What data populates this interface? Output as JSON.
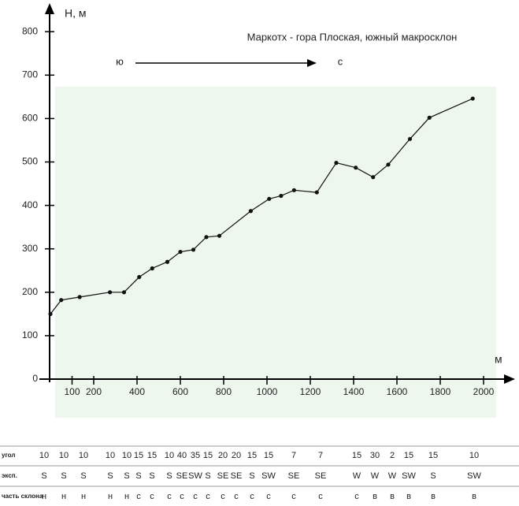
{
  "chart_data": {
    "type": "line",
    "title": "Маркотх - гора Плоская, южный макросклон",
    "y_label": "Н, м",
    "x_label": "м",
    "direction_start": "ю",
    "direction_end": "с",
    "xlim": [
      0,
      2130
    ],
    "ylim": [
      0,
      850
    ],
    "xticks": [
      100,
      200,
      400,
      600,
      800,
      1000,
      1200,
      1400,
      1600,
      1800,
      2000
    ],
    "yticks": [
      0,
      100,
      200,
      300,
      400,
      500,
      600,
      700,
      800
    ],
    "x": [
      0,
      50,
      135,
      275,
      340,
      410,
      470,
      540,
      600,
      660,
      720,
      780,
      925,
      1010,
      1065,
      1125,
      1230,
      1320,
      1410,
      1490,
      1560,
      1660,
      1750,
      1950
    ],
    "series": [
      {
        "color": "#111111",
        "values": [
          150,
          182,
          189,
          200,
          200,
          235,
          255,
          270,
          293,
          298,
          327,
          330,
          387,
          415,
          422,
          435,
          430,
          498,
          487,
          465,
          494,
          553,
          602,
          646
        ]
      }
    ]
  },
  "table": {
    "rows": [
      {
        "label": "угол",
        "cells": [
          "10",
          "10",
          "10",
          "10",
          "10",
          "15",
          "15",
          "10",
          "40",
          "35",
          "15",
          "20",
          "20",
          "15",
          "15",
          "7",
          "7",
          "15",
          "30",
          "2",
          "15",
          "15",
          "10"
        ]
      },
      {
        "label": "эксп.",
        "cells": [
          "S",
          "S",
          "S",
          "S",
          "S",
          "S",
          "S",
          "S",
          "SE",
          "SW",
          "S",
          "SE",
          "SE",
          "S",
          "SW",
          "SE",
          "SE",
          "W",
          "W",
          "W",
          "SW",
          "S",
          "SW"
        ]
      },
      {
        "label": "часть склона",
        "cells": [
          "н",
          "н",
          "н",
          "н",
          "н",
          "с",
          "с",
          "с",
          "с",
          "с",
          "с",
          "с",
          "с",
          "с",
          "с",
          "с",
          "с",
          "с",
          "в",
          "в",
          "в",
          "в",
          "в"
        ]
      }
    ]
  }
}
